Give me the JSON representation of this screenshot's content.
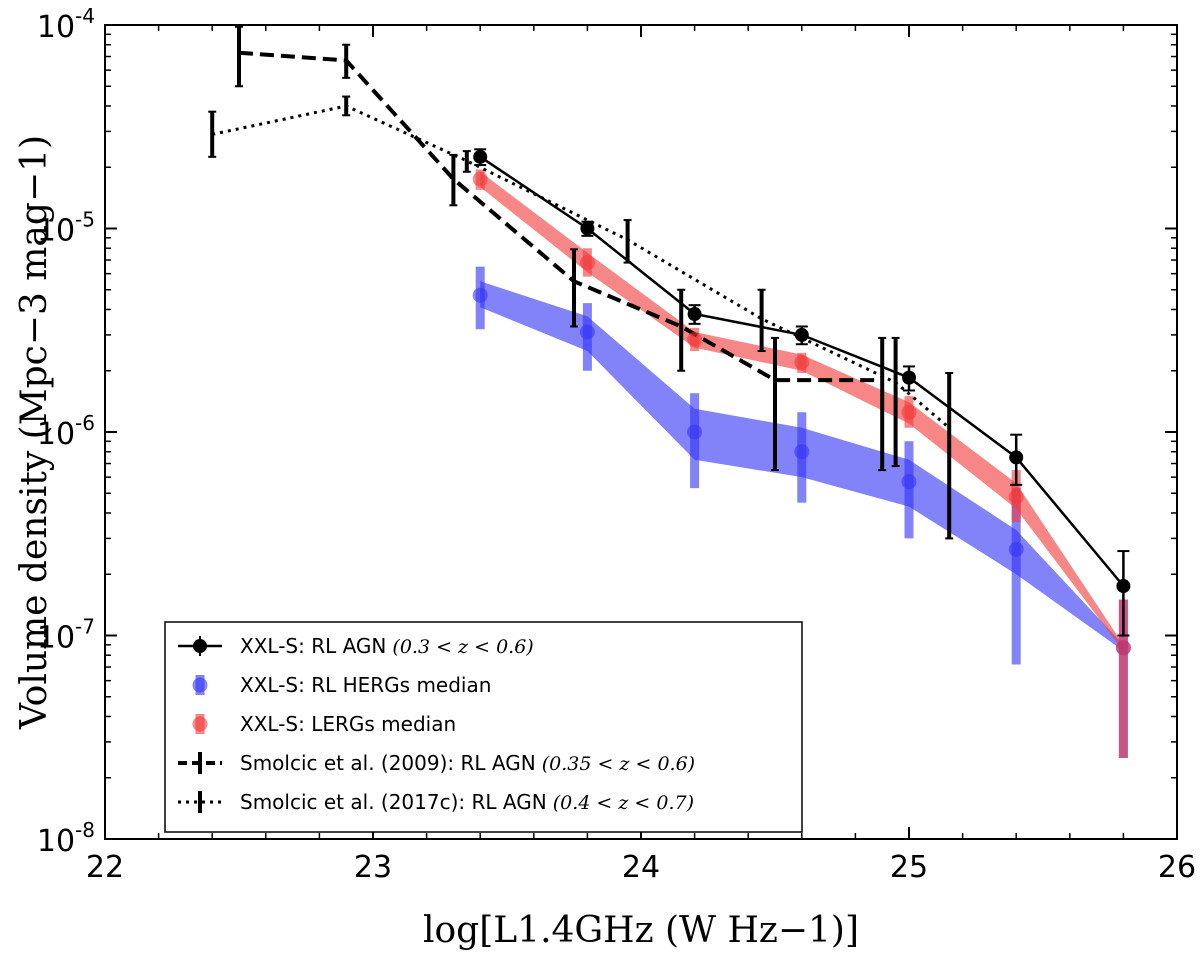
{
  "chart_data": {
    "type": "line",
    "xlabel": "log[L1.4GHz (W Hz−1)]",
    "ylabel": "Volume density (Mpc−3 mag−1)",
    "xlim": [
      22,
      26
    ],
    "ylim": [
      1e-08,
      0.0001
    ],
    "y_scale": "log",
    "x_ticks": [
      "22",
      "23",
      "24",
      "25",
      "26"
    ],
    "y_ticks": [
      {
        "base": "10",
        "exp": "-8",
        "value": 1e-08
      },
      {
        "base": "10",
        "exp": "-7",
        "value": 1e-07
      },
      {
        "base": "10",
        "exp": "-6",
        "value": 1e-06
      },
      {
        "base": "10",
        "exp": "-5",
        "value": 1e-05
      },
      {
        "base": "10",
        "exp": "-4",
        "value": 0.0001
      }
    ],
    "grid": false,
    "legend_position": "bottom-left",
    "series": [
      {
        "key": "xxl_rl_agn",
        "legend_label": "XXL-S: RL AGN",
        "legend_math": "(0.3 < z < 0.6)",
        "color": "#000000",
        "style": "solid-markers",
        "points": [
          {
            "x": 23.4,
            "y": 2.25e-05,
            "lo": 2.05e-05,
            "hi": 2.45e-05
          },
          {
            "x": 23.8,
            "y": 1e-05,
            "lo": 9.2e-06,
            "hi": 1.08e-05
          },
          {
            "x": 24.2,
            "y": 3.8e-06,
            "lo": 3.4e-06,
            "hi": 4.2e-06
          },
          {
            "x": 24.6,
            "y": 3e-06,
            "lo": 2.7e-06,
            "hi": 3.3e-06
          },
          {
            "x": 25.0,
            "y": 1.85e-06,
            "lo": 1.6e-06,
            "hi": 2.1e-06
          },
          {
            "x": 25.4,
            "y": 7.5e-07,
            "lo": 5.5e-07,
            "hi": 9.7e-07
          },
          {
            "x": 25.8,
            "y": 1.75e-07,
            "lo": 1e-07,
            "hi": 2.6e-07
          }
        ]
      },
      {
        "key": "herg_median",
        "legend_label": "XXL-S: RL HERGs median",
        "legend_math": "",
        "color": "#3535f5",
        "style": "band-markers",
        "points": [
          {
            "x": 23.4,
            "y": 4.7e-06,
            "lo": 3.2e-06,
            "hi": 6.5e-06,
            "band_lo": 4.1e-06,
            "band_hi": 5.5e-06
          },
          {
            "x": 23.8,
            "y": 3.1e-06,
            "lo": 2e-06,
            "hi": 4.3e-06,
            "band_lo": 2.5e-06,
            "band_hi": 3.7e-06
          },
          {
            "x": 24.2,
            "y": 1e-06,
            "lo": 5.3e-07,
            "hi": 1.55e-06,
            "band_lo": 7.3e-07,
            "band_hi": 1.3e-06
          },
          {
            "x": 24.6,
            "y": 8e-07,
            "lo": 4.5e-07,
            "hi": 1.25e-06,
            "band_lo": 6e-07,
            "band_hi": 1.05e-06
          },
          {
            "x": 25.0,
            "y": 5.7e-07,
            "lo": 3e-07,
            "hi": 9e-07,
            "band_lo": 4.3e-07,
            "band_hi": 7.3e-07
          },
          {
            "x": 25.4,
            "y": 2.65e-07,
            "lo": 7.2e-08,
            "hi": 5.3e-07,
            "band_lo": 2e-07,
            "band_hi": 3.3e-07
          },
          {
            "x": 25.8,
            "y": 8.7e-08,
            "lo": 2.5e-08,
            "hi": 1.5e-07,
            "band_lo": 8.4e-08,
            "band_hi": 9e-08
          }
        ]
      },
      {
        "key": "lerg_median",
        "legend_label": "XXL-S: LERGs median",
        "legend_math": "",
        "color": "#f23b3b",
        "style": "band-markers",
        "points": [
          {
            "x": 23.4,
            "y": 1.75e-05,
            "lo": 1.55e-05,
            "hi": 1.95e-05,
            "band_lo": 1.6e-05,
            "band_hi": 1.9e-05
          },
          {
            "x": 23.8,
            "y": 6.8e-06,
            "lo": 5.8e-06,
            "hi": 8e-06,
            "band_lo": 6.1e-06,
            "band_hi": 7.6e-06
          },
          {
            "x": 24.2,
            "y": 2.85e-06,
            "lo": 2.5e-06,
            "hi": 3.25e-06,
            "band_lo": 2.6e-06,
            "band_hi": 3.1e-06
          },
          {
            "x": 24.6,
            "y": 2.2e-06,
            "lo": 1.95e-06,
            "hi": 2.45e-06,
            "band_lo": 2e-06,
            "band_hi": 2.4e-06
          },
          {
            "x": 25.0,
            "y": 1.25e-06,
            "lo": 1.05e-06,
            "hi": 1.5e-06,
            "band_lo": 1.1e-06,
            "band_hi": 1.4e-06
          },
          {
            "x": 25.4,
            "y": 4.8e-07,
            "lo": 3.6e-07,
            "hi": 6.5e-07,
            "band_lo": 4.2e-07,
            "band_hi": 5.6e-07
          },
          {
            "x": 25.8,
            "y": 8.7e-08,
            "lo": 2.5e-08,
            "hi": 1.5e-07,
            "band_lo": 8.4e-08,
            "band_hi": 9e-08
          }
        ]
      },
      {
        "key": "smolcic_2009",
        "legend_label": "Smolcic et al. (2009): RL AGN",
        "legend_math": "(0.35 < z < 0.6)",
        "color": "#000000",
        "style": "dashed",
        "points": [
          {
            "x": 22.5,
            "y": 7.3e-05,
            "lo": 5e-05,
            "hi": 9.8e-05
          },
          {
            "x": 22.9,
            "y": 6.7e-05,
            "lo": 5.5e-05,
            "hi": 8e-05
          },
          {
            "x": 23.3,
            "y": 1.75e-05,
            "lo": 1.3e-05,
            "hi": 2.3e-05
          },
          {
            "x": 23.75,
            "y": 5.5e-06,
            "lo": 3.3e-06,
            "hi": 7.9e-06
          },
          {
            "x": 24.15,
            "y": 3.3e-06,
            "lo": 2e-06,
            "hi": 5e-06
          },
          {
            "x": 24.5,
            "y": 1.8e-06,
            "lo": 6.5e-07,
            "hi": 2.9e-06
          },
          {
            "x": 24.9,
            "y": 1.8e-06,
            "lo": 6.5e-07,
            "hi": 2.9e-06
          }
        ]
      },
      {
        "key": "smolcic_2017c",
        "legend_label": "Smolcic et al. (2017c): RL AGN",
        "legend_math": "(0.4 < z < 0.7)",
        "color": "#000000",
        "style": "dotted",
        "points": [
          {
            "x": 22.4,
            "y": 2.9e-05,
            "lo": 2.25e-05,
            "hi": 3.75e-05
          },
          {
            "x": 22.9,
            "y": 4e-05,
            "lo": 3.6e-05,
            "hi": 4.45e-05
          },
          {
            "x": 23.35,
            "y": 2.15e-05,
            "lo": 1.9e-05,
            "hi": 2.4e-05
          },
          {
            "x": 23.95,
            "y": 8.8e-06,
            "lo": 6.8e-06,
            "hi": 1.1e-05
          },
          {
            "x": 24.45,
            "y": 3.6e-06,
            "lo": 2.5e-06,
            "hi": 5e-06
          },
          {
            "x": 24.95,
            "y": 1.75e-06,
            "lo": 6.8e-07,
            "hi": 2.9e-06
          },
          {
            "x": 25.15,
            "y": 1.05e-06,
            "lo": 3e-07,
            "hi": 1.95e-06
          }
        ]
      }
    ]
  }
}
